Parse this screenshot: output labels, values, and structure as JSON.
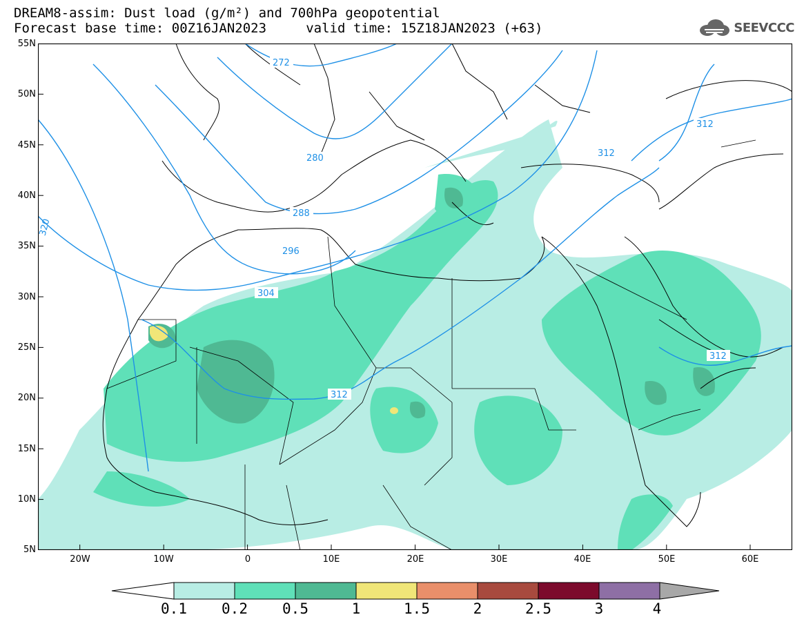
{
  "header": {
    "title_line1": "DREAM8-assim: Dust load (g/m²) and 700hPa geopotential",
    "title_line2": "Forecast base time: 00Z16JAN2023     valid time: 15Z18JAN2023 (+63)"
  },
  "logo": {
    "text": "SEEVCCC",
    "icon": "cloud-icon"
  },
  "map": {
    "lat_range": [
      5,
      55
    ],
    "lon_range": [
      -25,
      65
    ],
    "lat_labels": [
      "55N",
      "50N",
      "45N",
      "40N",
      "35N",
      "30N",
      "25N",
      "20N",
      "15N",
      "10N",
      "5N"
    ],
    "lon_labels": [
      "20W",
      "10W",
      "0",
      "10E",
      "20E",
      "30E",
      "40E",
      "50E",
      "60E"
    ],
    "contour_labels": [
      "272",
      "280",
      "288",
      "296",
      "304",
      "312",
      "312",
      "312",
      "312",
      "320"
    ],
    "contour_color": "#1e90e6",
    "coastline_color": "#000000"
  },
  "colorbar": {
    "levels": [
      "0.1",
      "0.2",
      "0.5",
      "1",
      "1.5",
      "2",
      "2.5",
      "3",
      "4"
    ],
    "colors": [
      "#b8ede4",
      "#5fe0b8",
      "#4fb993",
      "#f0e678",
      "#e98f6a",
      "#a84a3e",
      "#7c0a2c",
      "#8e6fa5",
      "#a8a8a8"
    ]
  }
}
